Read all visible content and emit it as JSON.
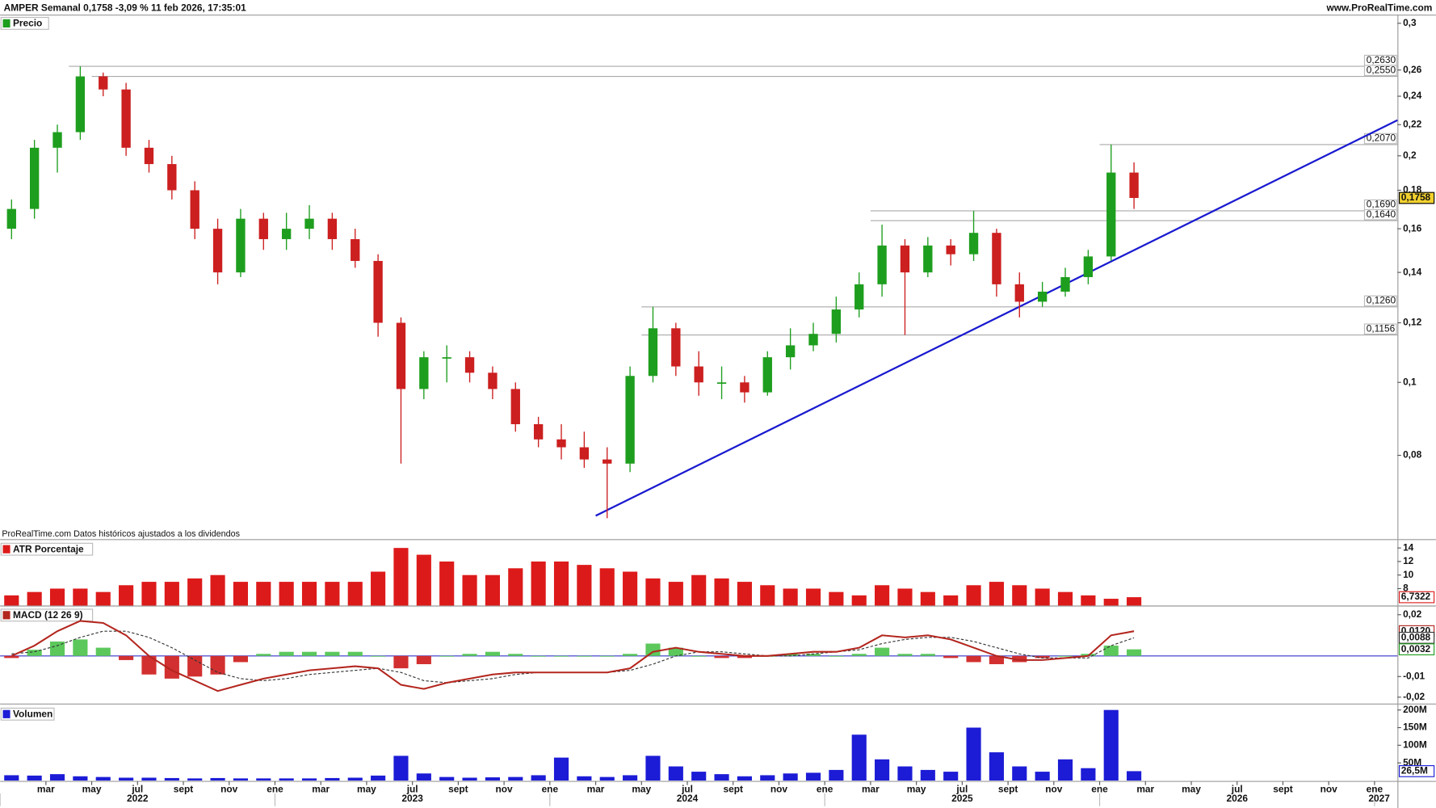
{
  "header": {
    "title": "AMPER Semanal 0,1758 -3,09 % 11 feb 2026, 17:35:01",
    "site": "www.ProRealTime.com",
    "note": "ProRealTime.com  Datos históricos ajustados a los dividendos"
  },
  "x_axis": {
    "xlim": [
      "2022-01",
      "2027-02"
    ],
    "month_ticks": [
      {
        "value": "2022-03",
        "label": "mar"
      },
      {
        "value": "2022-05",
        "label": "may"
      },
      {
        "value": "2022-07",
        "label": "jul"
      },
      {
        "value": "2022-09",
        "label": "sept"
      },
      {
        "value": "2022-11",
        "label": "nov"
      },
      {
        "value": "2023-01",
        "label": "ene"
      },
      {
        "value": "2023-03",
        "label": "mar"
      },
      {
        "value": "2023-05",
        "label": "may"
      },
      {
        "value": "2023-07",
        "label": "jul"
      },
      {
        "value": "2023-09",
        "label": "sept"
      },
      {
        "value": "2023-11",
        "label": "nov"
      },
      {
        "value": "2024-01",
        "label": "ene"
      },
      {
        "value": "2024-03",
        "label": "mar"
      },
      {
        "value": "2024-05",
        "label": "may"
      },
      {
        "value": "2024-07",
        "label": "jul"
      },
      {
        "value": "2024-09",
        "label": "sept"
      },
      {
        "value": "2024-11",
        "label": "nov"
      },
      {
        "value": "2025-01",
        "label": "ene"
      },
      {
        "value": "2025-03",
        "label": "mar"
      },
      {
        "value": "2025-05",
        "label": "may"
      },
      {
        "value": "2025-07",
        "label": "jul"
      },
      {
        "value": "2025-09",
        "label": "sept"
      },
      {
        "value": "2025-11",
        "label": "nov"
      },
      {
        "value": "2026-01",
        "label": "ene"
      },
      {
        "value": "2026-03",
        "label": "mar"
      },
      {
        "value": "2026-05",
        "label": "may"
      },
      {
        "value": "2026-07",
        "label": "jul"
      },
      {
        "value": "2026-09",
        "label": "sept"
      },
      {
        "value": "2026-11",
        "label": "nov"
      },
      {
        "value": "2027-01",
        "label": "ene"
      }
    ],
    "year_ticks": [
      {
        "value": "2022-01",
        "label": "2022"
      },
      {
        "value": "2023-01",
        "label": "2023"
      },
      {
        "value": "2024-01",
        "label": "2024"
      },
      {
        "value": "2025-01",
        "label": "2025"
      },
      {
        "value": "2026-01",
        "label": "2026"
      },
      {
        "value": "2027-01",
        "label": "2027"
      }
    ]
  },
  "chart_data": [
    {
      "type": "candlestick",
      "title": "Precio",
      "log": true,
      "ylim": [
        0.062,
        0.308
      ],
      "yticks": [
        {
          "value": 0.08,
          "label": "0,08"
        },
        {
          "value": 0.1,
          "label": "0,1"
        },
        {
          "value": 0.12,
          "label": "0,12"
        },
        {
          "value": 0.14,
          "label": "0,14"
        },
        {
          "value": 0.16,
          "label": "0,16"
        },
        {
          "value": 0.18,
          "label": "0,18"
        },
        {
          "value": 0.2,
          "label": "0,2"
        },
        {
          "value": 0.22,
          "label": "0,22"
        },
        {
          "value": 0.24,
          "label": "0,24"
        },
        {
          "value": 0.26,
          "label": "0,26"
        },
        {
          "value": 0.3,
          "label": "0,3"
        }
      ],
      "up_color": "#1e9e1e",
      "down_color": "#cc1f1f",
      "x": [
        "2022-01",
        "2022-02",
        "2022-03",
        "2022-04",
        "2022-05",
        "2022-06",
        "2022-07",
        "2022-08",
        "2022-09",
        "2022-10",
        "2022-11",
        "2022-12",
        "2023-01",
        "2023-02",
        "2023-03",
        "2023-04",
        "2023-05",
        "2023-06",
        "2023-07",
        "2023-08",
        "2023-09",
        "2023-10",
        "2023-11",
        "2023-12",
        "2024-01",
        "2024-02",
        "2024-03",
        "2024-04",
        "2024-05",
        "2024-06",
        "2024-07",
        "2024-08",
        "2024-09",
        "2024-10",
        "2024-11",
        "2024-12",
        "2025-01",
        "2025-02",
        "2025-03",
        "2025-04",
        "2025-05",
        "2025-06",
        "2025-07",
        "2025-08",
        "2025-09",
        "2025-10",
        "2025-11",
        "2025-12",
        "2026-01",
        "2026-02"
      ],
      "open": [
        0.16,
        0.17,
        0.205,
        0.215,
        0.255,
        0.245,
        0.205,
        0.195,
        0.18,
        0.16,
        0.14,
        0.165,
        0.155,
        0.16,
        0.165,
        0.155,
        0.145,
        0.12,
        0.098,
        0.108,
        0.108,
        0.103,
        0.098,
        0.088,
        0.084,
        0.082,
        0.079,
        0.078,
        0.102,
        0.118,
        0.105,
        0.1,
        0.1,
        0.097,
        0.108,
        0.112,
        0.116,
        0.125,
        0.135,
        0.152,
        0.14,
        0.152,
        0.148,
        0.158,
        0.135,
        0.128,
        0.132,
        0.138,
        0.147,
        0.19
      ],
      "high": [
        0.175,
        0.21,
        0.22,
        0.263,
        0.258,
        0.25,
        0.21,
        0.2,
        0.185,
        0.165,
        0.17,
        0.168,
        0.168,
        0.172,
        0.168,
        0.16,
        0.148,
        0.122,
        0.11,
        0.112,
        0.11,
        0.105,
        0.1,
        0.09,
        0.088,
        0.086,
        0.082,
        0.105,
        0.126,
        0.12,
        0.11,
        0.105,
        0.102,
        0.11,
        0.118,
        0.12,
        0.13,
        0.14,
        0.162,
        0.155,
        0.156,
        0.155,
        0.169,
        0.16,
        0.14,
        0.136,
        0.142,
        0.15,
        0.207,
        0.196
      ],
      "low": [
        0.155,
        0.165,
        0.19,
        0.21,
        0.24,
        0.2,
        0.19,
        0.175,
        0.155,
        0.135,
        0.138,
        0.15,
        0.15,
        0.155,
        0.15,
        0.142,
        0.115,
        0.078,
        0.095,
        0.1,
        0.1,
        0.095,
        0.086,
        0.082,
        0.079,
        0.077,
        0.066,
        0.076,
        0.1,
        0.102,
        0.096,
        0.095,
        0.094,
        0.096,
        0.104,
        0.11,
        0.113,
        0.122,
        0.13,
        0.1156,
        0.138,
        0.143,
        0.145,
        0.13,
        0.122,
        0.126,
        0.13,
        0.135,
        0.145,
        0.17
      ],
      "close": [
        0.17,
        0.205,
        0.215,
        0.255,
        0.245,
        0.205,
        0.195,
        0.18,
        0.16,
        0.14,
        0.165,
        0.155,
        0.16,
        0.165,
        0.155,
        0.145,
        0.12,
        0.098,
        0.108,
        0.108,
        0.103,
        0.098,
        0.088,
        0.084,
        0.082,
        0.079,
        0.078,
        0.102,
        0.118,
        0.105,
        0.1,
        0.1,
        0.097,
        0.108,
        0.112,
        0.116,
        0.125,
        0.135,
        0.152,
        0.14,
        0.152,
        0.148,
        0.158,
        0.135,
        0.128,
        0.132,
        0.138,
        0.147,
        0.19,
        0.1758
      ],
      "last_label": "0,1758",
      "levels": [
        {
          "value": 0.263,
          "label": "0,2630",
          "x0": "2022-04"
        },
        {
          "value": 0.255,
          "label": "0,2550",
          "x0": "2022-05"
        },
        {
          "value": 0.207,
          "label": "0,2070",
          "x0": "2026-01"
        },
        {
          "value": 0.169,
          "label": "0,1690",
          "x0": "2025-03"
        },
        {
          "value": 0.164,
          "label": "0,1640",
          "x0": "2025-03"
        },
        {
          "value": 0.126,
          "label": "0,1260",
          "x0": "2024-05"
        },
        {
          "value": 0.1156,
          "label": "0,1156",
          "x0": "2024-05"
        }
      ],
      "trendline": {
        "x": [
          "2024-03",
          "2027-02"
        ],
        "y": [
          0.0665,
          0.223
        ],
        "color": "#1a1ad0"
      }
    },
    {
      "type": "bar",
      "title": "ATR Porcentaje",
      "color": "#dd1a1a",
      "ylim": [
        5.5,
        15.1
      ],
      "yticks": [
        8,
        10,
        12,
        14
      ],
      "values": [
        7,
        7.5,
        8,
        8,
        7.5,
        8.5,
        9,
        9,
        9.5,
        10,
        9,
        9,
        9,
        9,
        9,
        9,
        10.5,
        14,
        13,
        12,
        10,
        10,
        11,
        12,
        12,
        11.5,
        11,
        10.5,
        9.5,
        9,
        10,
        9.5,
        9,
        8.5,
        8,
        8,
        7.5,
        7,
        8.5,
        8,
        7.5,
        7,
        8.5,
        9,
        8.5,
        8,
        7.5,
        7,
        6.5,
        6.7322
      ],
      "last_label": "6,7322"
    },
    {
      "type": "macd",
      "title": "MACD (12 26 9)",
      "ylim": [
        -0.0231,
        0.024
      ],
      "yticks": [
        {
          "value": 0.02,
          "label": "0,02"
        },
        {
          "value": -0.01,
          "label": "-0,01"
        },
        {
          "value": -0.02,
          "label": "-0,02"
        }
      ],
      "series": [
        {
          "name": "MACD",
          "color": "#b3261e",
          "last_label": "0,0120",
          "values": [
            0,
            0.005,
            0.012,
            0.017,
            0.016,
            0.01,
            0,
            -0.007,
            -0.012,
            -0.017,
            -0.014,
            -0.011,
            -0.009,
            -0.007,
            -0.006,
            -0.005,
            -0.006,
            -0.014,
            -0.016,
            -0.013,
            -0.011,
            -0.009,
            -0.008,
            -0.008,
            -0.008,
            -0.008,
            -0.008,
            -0.006,
            0.002,
            0.004,
            0.002,
            0.001,
            0,
            0,
            0.001,
            0.002,
            0.002,
            0.004,
            0.01,
            0.009,
            0.01,
            0.008,
            0.004,
            0,
            -0.002,
            -0.002,
            -0.001,
            0,
            0.01,
            0.012
          ]
        },
        {
          "name": "Signal",
          "color": "#333333",
          "last_label": "0,0088",
          "values": [
            0.001,
            0.002,
            0.005,
            0.009,
            0.012,
            0.012,
            0.009,
            0.004,
            -0.002,
            -0.008,
            -0.011,
            -0.012,
            -0.011,
            -0.009,
            -0.008,
            -0.007,
            -0.006,
            -0.008,
            -0.012,
            -0.013,
            -0.012,
            -0.011,
            -0.009,
            -0.008,
            -0.008,
            -0.008,
            -0.008,
            -0.007,
            -0.004,
            0,
            0.002,
            0.002,
            0.001,
            0,
            0,
            0.001,
            0.002,
            0.003,
            0.006,
            0.008,
            0.009,
            0.009,
            0.007,
            0.004,
            0.001,
            -0.001,
            -0.001,
            -0.001,
            0.005,
            0.0088
          ]
        },
        {
          "name": "Histogram",
          "color": "#5cc85c",
          "neg_color": "#d23030",
          "last_label": "0,0032",
          "values": [
            -0.001,
            0.003,
            0.007,
            0.008,
            0.004,
            -0.002,
            -0.009,
            -0.011,
            -0.01,
            -0.009,
            -0.003,
            0.001,
            0.002,
            0.002,
            0.002,
            0.002,
            0,
            -0.006,
            -0.004,
            0,
            0.001,
            0.002,
            0.001,
            0,
            0,
            0,
            0,
            0.001,
            0.006,
            0.004,
            0,
            -0.001,
            -0.001,
            0,
            0.001,
            0.001,
            0,
            0.001,
            0.004,
            0.001,
            0.001,
            -0.001,
            -0.003,
            -0.004,
            -0.003,
            -0.001,
            0,
            0.001,
            0.005,
            0.0032
          ]
        }
      ],
      "zero_color": "#3333cc"
    },
    {
      "type": "bar",
      "title": "Volumen",
      "color": "#1c1cd6",
      "ylim": [
        0,
        213000000
      ],
      "yticks": [
        {
          "value": 50000000,
          "label": "50M"
        },
        {
          "value": 100000000,
          "label": "100M"
        },
        {
          "value": 150000000,
          "label": "150M"
        },
        {
          "value": 200000000,
          "label": "200M"
        }
      ],
      "values": [
        15000000,
        14000000,
        18000000,
        12000000,
        10000000,
        8000000,
        8000000,
        7000000,
        6000000,
        7000000,
        6000000,
        6000000,
        6000000,
        6000000,
        7000000,
        8000000,
        14000000,
        70000000,
        20000000,
        10000000,
        8000000,
        9000000,
        10000000,
        15000000,
        65000000,
        12000000,
        10000000,
        15000000,
        70000000,
        40000000,
        25000000,
        18000000,
        12000000,
        15000000,
        20000000,
        22000000,
        30000000,
        130000000,
        60000000,
        40000000,
        30000000,
        25000000,
        150000000,
        80000000,
        40000000,
        25000000,
        60000000,
        35000000,
        200000000,
        26500000
      ],
      "last_label": "26,5M"
    }
  ]
}
